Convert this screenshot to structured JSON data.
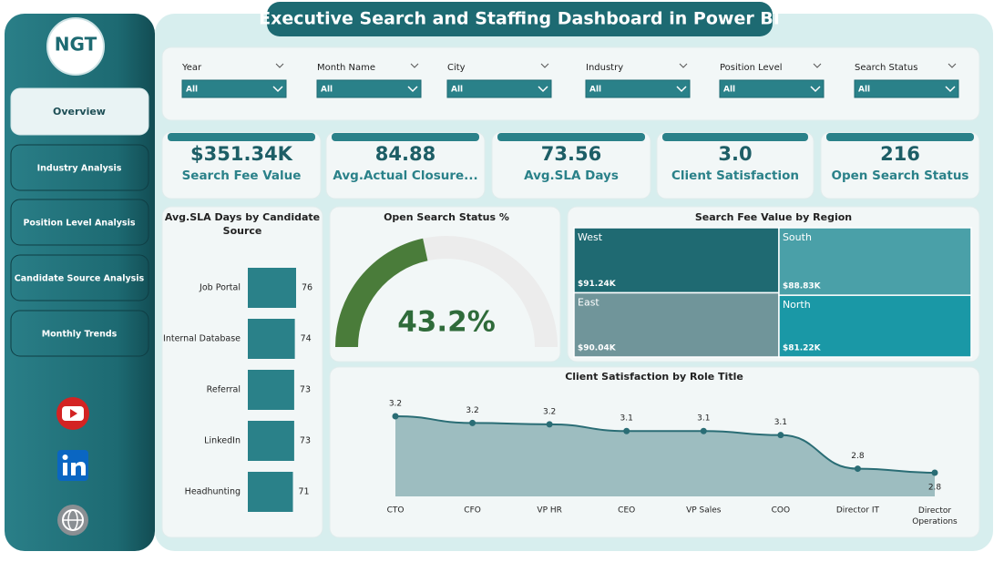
{
  "header": {
    "title": "Executive Search and Staffing Dashboard in Power BI",
    "logo": "NGT"
  },
  "nav": [
    "Overview",
    "Industry Analysis",
    "Position Level Analysis",
    "Candidate Source Analysis",
    "Monthly Trends"
  ],
  "filters": [
    {
      "label": "Year",
      "value": "All"
    },
    {
      "label": "Month Name",
      "value": "All"
    },
    {
      "label": "City",
      "value": "All"
    },
    {
      "label": "Industry",
      "value": "All"
    },
    {
      "label": "Position Level",
      "value": "All"
    },
    {
      "label": "Search Status",
      "value": "All"
    }
  ],
  "kpis": [
    {
      "value": "$351.34K",
      "label": "Search Fee Value"
    },
    {
      "value": "84.88",
      "label": "Avg.Actual Closure..."
    },
    {
      "value": "73.56",
      "label": "Avg.SLA Days"
    },
    {
      "value": "3.0",
      "label": "Client Satisfaction"
    },
    {
      "value": "216",
      "label": "Open Search Status"
    }
  ],
  "chart_data": [
    {
      "type": "hbar",
      "title": "Avg.SLA Days by Candidate Source",
      "categories": [
        "Job Portal",
        "Internal Database",
        "Referral",
        "LinkedIn",
        "Headhunting"
      ],
      "values": [
        76,
        74,
        73,
        73,
        71
      ],
      "color": "#2a8189"
    },
    {
      "type": "gauge",
      "title": "Open Search Status %",
      "value": 43.2,
      "value_label": "43.2%",
      "ylim": [
        0,
        100
      ],
      "color": "#4a7c3a",
      "track_color": "#ececec"
    },
    {
      "type": "treemap",
      "title": "Search Fee Value by Region",
      "categories": [
        "West",
        "South",
        "East",
        "North"
      ],
      "values": [
        91240,
        88830,
        90040,
        81220
      ],
      "value_labels": [
        "$91.24K",
        "$88.83K",
        "$90.04K",
        "$81.22K"
      ],
      "colors": [
        "#1f6a72",
        "#4aa0a8",
        "#70959a",
        "#1a98a6"
      ]
    },
    {
      "type": "area",
      "title": "Client Satisfaction by Role Title",
      "categories": [
        "CTO",
        "CFO",
        "VP HR",
        "CEO",
        "VP Sales",
        "COO",
        "Director IT",
        "Director Operations"
      ],
      "values": [
        3.22,
        3.17,
        3.16,
        3.11,
        3.11,
        3.08,
        2.83,
        2.8
      ],
      "value_labels": [
        "3.2",
        "3.2",
        "3.2",
        "3.1",
        "3.1",
        "3.1",
        "2.8",
        "2.8"
      ],
      "color": "#2a6d75",
      "fill": "#9dbdc0"
    }
  ]
}
